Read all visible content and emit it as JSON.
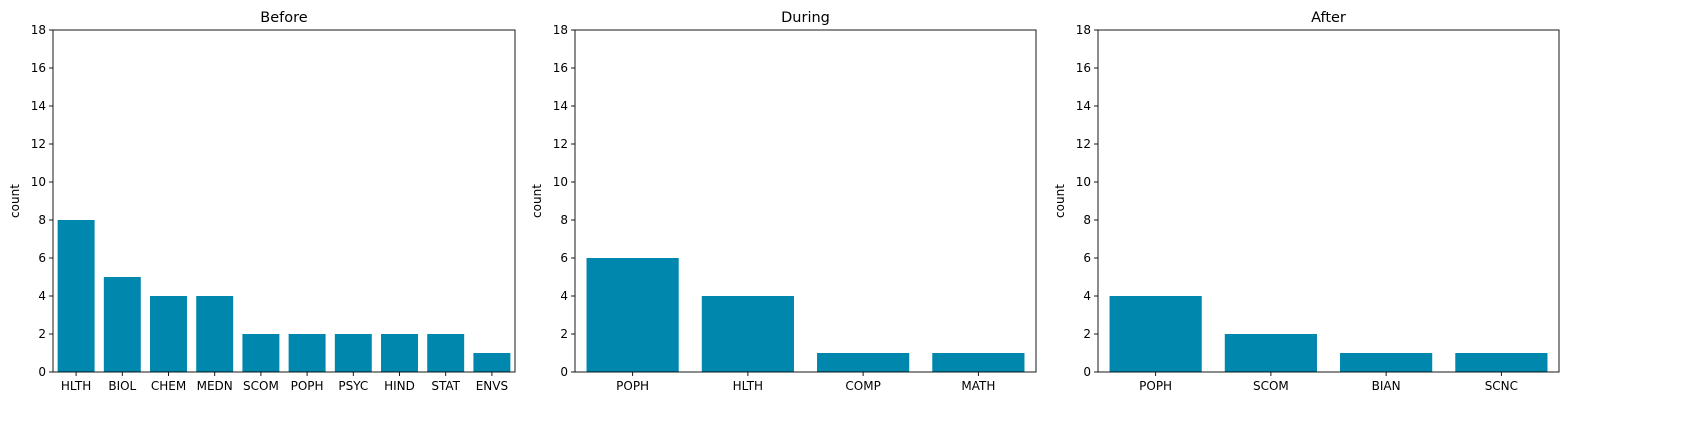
{
  "style": {
    "bar_color": "#0087ae",
    "axis_color": "#000000",
    "background": "#ffffff"
  },
  "chart_data": [
    {
      "type": "bar",
      "title": "Before",
      "xlabel": "",
      "ylabel": "count",
      "ylim": [
        0,
        18
      ],
      "yticks": [
        0,
        2,
        4,
        6,
        8,
        10,
        12,
        14,
        16,
        18
      ],
      "grid": false,
      "categories": [
        "HLTH",
        "BIOL",
        "CHEM",
        "MEDN",
        "SCOM",
        "POPH",
        "PSYC",
        "HIND",
        "STAT",
        "ENVS"
      ],
      "values": [
        8,
        5,
        4,
        4,
        2,
        2,
        2,
        2,
        2,
        1
      ]
    },
    {
      "type": "bar",
      "title": "During",
      "xlabel": "",
      "ylabel": "count",
      "ylim": [
        0,
        18
      ],
      "yticks": [
        0,
        2,
        4,
        6,
        8,
        10,
        12,
        14,
        16,
        18
      ],
      "grid": false,
      "categories": [
        "POPH",
        "HLTH",
        "COMP",
        "MATH"
      ],
      "values": [
        6,
        4,
        1,
        1
      ]
    },
    {
      "type": "bar",
      "title": "After",
      "xlabel": "",
      "ylabel": "count",
      "ylim": [
        0,
        18
      ],
      "yticks": [
        0,
        2,
        4,
        6,
        8,
        10,
        12,
        14,
        16,
        18
      ],
      "grid": false,
      "categories": [
        "POPH",
        "SCOM",
        "BIAN",
        "SCNC"
      ],
      "values": [
        4,
        2,
        1,
        1
      ]
    }
  ]
}
